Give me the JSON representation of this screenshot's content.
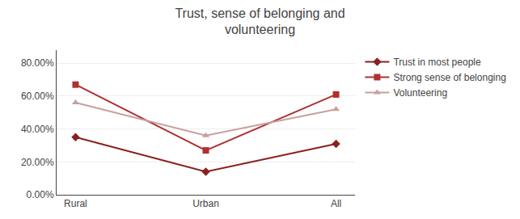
{
  "chart_data": {
    "type": "line",
    "title": "Trust, sense of belonging and\nvolunteering",
    "categories": [
      "Rural",
      "Urban",
      "All"
    ],
    "series": [
      {
        "name": "Trust in most people",
        "color": "#8B2020",
        "marker": "diamond",
        "values": [
          0.35,
          0.14,
          0.31
        ]
      },
      {
        "name": "Strong sense of belonging",
        "color": "#B03030",
        "marker": "square",
        "values": [
          0.67,
          0.27,
          0.61
        ]
      },
      {
        "name": "Volunteering",
        "color": "#C8A0A0",
        "marker": "triangle-up",
        "values": [
          0.56,
          0.36,
          0.52
        ]
      }
    ],
    "ylim": [
      0.0,
      0.88
    ],
    "yticks": [
      {
        "value": 0.0,
        "label": "0.00%"
      },
      {
        "value": 0.2,
        "label": "20.00%"
      },
      {
        "value": 0.4,
        "label": "40.00%"
      },
      {
        "value": 0.6,
        "label": "60.00%"
      },
      {
        "value": 0.8,
        "label": "80.00%"
      }
    ],
    "grid": true,
    "legend": "right"
  }
}
